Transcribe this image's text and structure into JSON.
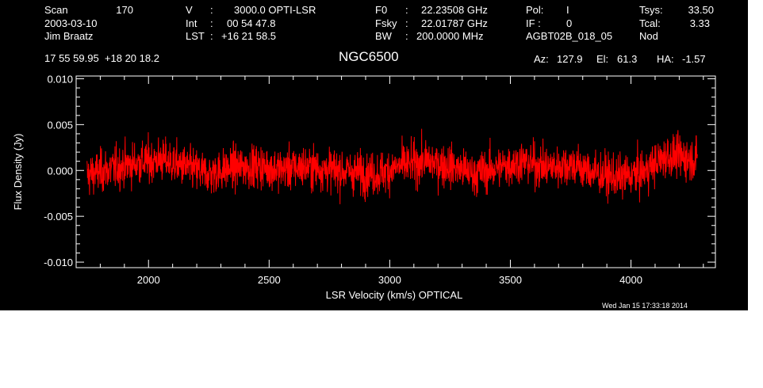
{
  "header": {
    "scan_label": "Scan",
    "scan_value": "170",
    "date": "2003-03-10",
    "observer": "Jim Braatz",
    "coords": "17 55 59.95  +18 20 18.2",
    "v_label": "V",
    "v_sep": ":",
    "v_value": "3000.0 OPTI-LSR",
    "int_label": "Int",
    "int_sep": ":",
    "int_value": "00 54 47.8",
    "lst_label": "LST",
    "lst_sep": ":",
    "lst_value": "+16 21 58.5",
    "f0_label": "F0",
    "f0_sep": ":",
    "f0_value": "22.23508 GHz",
    "fsky_label": "Fsky",
    "fsky_sep": ":",
    "fsky_value": "22.01787 GHz",
    "bw_label": "BW",
    "bw_sep": ":",
    "bw_value": "200.0000 MHz",
    "pol_label": "Pol:",
    "pol_value": "I",
    "if_label": "IF :",
    "if_value": "0",
    "project": "AGBT02B_018_05",
    "tsys_label": "Tsys:",
    "tsys_value": "33.50",
    "tcal_label": "Tcal:",
    "tcal_value": "3.33",
    "mode": "Nod",
    "object": "NGC6500",
    "az_label": "Az:",
    "az_value": "127.9",
    "el_label": "El:",
    "el_value": "61.3",
    "ha_label": "HA:",
    "ha_value": "-1.57",
    "timestamp": "Wed Jan 15 17:33:18 2014"
  },
  "chart_data": {
    "type": "line",
    "title": "NGC6500",
    "xlabel": "LSR Velocity (km/s) OPTICAL",
    "ylabel": "Flux Density (Jy)",
    "xlim": [
      1700,
      4350
    ],
    "ylim": [
      -0.0106,
      0.0103
    ],
    "xticks": [
      2000,
      2500,
      3000,
      3500,
      4000
    ],
    "xtick_labels": [
      "2000",
      "2500",
      "3000",
      "3500",
      "4000"
    ],
    "yticks": [
      -0.01,
      -0.005,
      0.0,
      0.005,
      0.01
    ],
    "ytick_labels": [
      "-0.010",
      "-0.005",
      "0.000",
      "0.005",
      "0.010"
    ],
    "grid": false,
    "series_color": "#ff0000",
    "series": [
      {
        "x_start": 1745,
        "x_end": 4275,
        "baseline": [
          [
            1745,
            -0.0005
          ],
          [
            1850,
            0.0002
          ],
          [
            1950,
            0.0008
          ],
          [
            2050,
            0.0012
          ],
          [
            2150,
            0.0004
          ],
          [
            2250,
            -0.0004
          ],
          [
            2350,
            0.0003
          ],
          [
            2450,
            0.0005
          ],
          [
            2550,
            0.0001
          ],
          [
            2650,
            0.0004
          ],
          [
            2750,
            0.0001
          ],
          [
            2850,
            -0.0002
          ],
          [
            2950,
            -0.0004
          ],
          [
            3050,
            0.0005
          ],
          [
            3150,
            0.001
          ],
          [
            3250,
            0.0005
          ],
          [
            3350,
            -0.0004
          ],
          [
            3450,
            0.0003
          ],
          [
            3550,
            0.001
          ],
          [
            3650,
            0.0003
          ],
          [
            3750,
            0.0007
          ],
          [
            3850,
            -0.0003
          ],
          [
            3950,
            -0.0008
          ],
          [
            4050,
            -0.0002
          ],
          [
            4150,
            0.0016
          ],
          [
            4275,
            0.0012
          ]
        ],
        "noise_rms": 0.0016
      }
    ]
  }
}
